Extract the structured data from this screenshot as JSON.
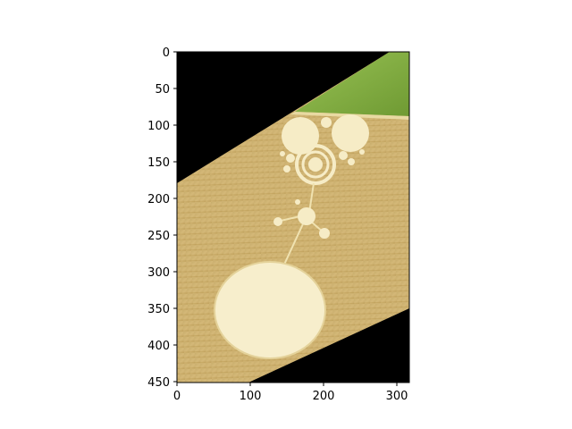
{
  "image_plot": {
    "x_ticks": [
      "0",
      "100",
      "200",
      "300"
    ],
    "y_ticks": [
      "0",
      "50",
      "100",
      "150",
      "200",
      "250",
      "300",
      "350",
      "400",
      "450"
    ],
    "xlim": [
      0,
      318
    ],
    "ylim": [
      450,
      0
    ]
  },
  "colors": {
    "background": "#000000",
    "field": "#cdb272",
    "field_dark": "#b89a58",
    "grass": "#7fa83e",
    "grass_light": "#9cc25a",
    "circle": "#f6ecc6"
  }
}
